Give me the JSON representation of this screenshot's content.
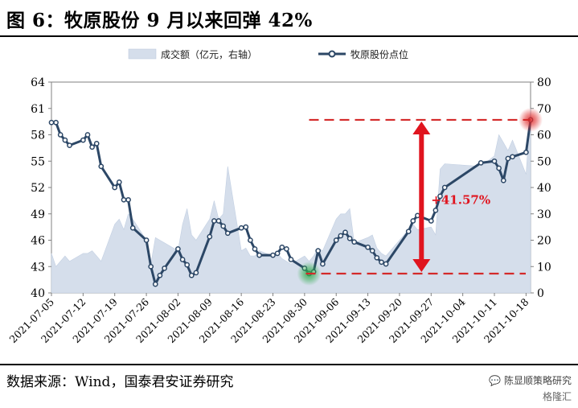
{
  "header": {
    "title": "图 6：牧原股份 9 月以来回弹 42%"
  },
  "footer": {
    "source": "数据来源：Wind，国泰君安证券研究",
    "watermark_line1": "陈显顺策略研究",
    "watermark_line2": "格隆汇"
  },
  "colors": {
    "line": "#2c4766",
    "area": "#d5deeb",
    "arrow": "#e0141e",
    "dash": "#d42a2a",
    "highlight_green": "#2eab4b",
    "highlight_red": "#e02b2b"
  },
  "chart_data": {
    "type": "line",
    "legend": [
      "成交额（亿元，右轴）",
      "牧原股份点位"
    ],
    "left_axis": {
      "min": 40,
      "max": 64,
      "ticks": [
        "40",
        "43",
        "46",
        "49",
        "52",
        "55",
        "58",
        "61",
        "64"
      ]
    },
    "right_axis": {
      "min": 0,
      "max": 80,
      "ticks": [
        "0",
        "10",
        "20",
        "30",
        "40",
        "50",
        "60",
        "70",
        "80"
      ]
    },
    "x_ticks": [
      "2021-07-05",
      "2021-07-12",
      "2021-07-19",
      "2021-07-26",
      "2021-08-02",
      "2021-08-09",
      "2021-08-16",
      "2021-08-23",
      "2021-08-30",
      "2021-09-06",
      "2021-09-13",
      "2021-09-20",
      "2021-09-27",
      "2021-10-04",
      "2021-10-11",
      "2021-10-18"
    ],
    "x": [
      "2021-07-05",
      "2021-07-06",
      "2021-07-07",
      "2021-07-08",
      "2021-07-09",
      "2021-07-12",
      "2021-07-13",
      "2021-07-14",
      "2021-07-15",
      "2021-07-16",
      "2021-07-19",
      "2021-07-20",
      "2021-07-21",
      "2021-07-22",
      "2021-07-23",
      "2021-07-26",
      "2021-07-27",
      "2021-07-28",
      "2021-07-29",
      "2021-07-30",
      "2021-08-02",
      "2021-08-03",
      "2021-08-04",
      "2021-08-05",
      "2021-08-06",
      "2021-08-09",
      "2021-08-10",
      "2021-08-11",
      "2021-08-12",
      "2021-08-13",
      "2021-08-16",
      "2021-08-17",
      "2021-08-18",
      "2021-08-19",
      "2021-08-20",
      "2021-08-23",
      "2021-08-24",
      "2021-08-25",
      "2021-08-26",
      "2021-08-27",
      "2021-08-30",
      "2021-08-31",
      "2021-09-01",
      "2021-09-02",
      "2021-09-03",
      "2021-09-06",
      "2021-09-07",
      "2021-09-08",
      "2021-09-09",
      "2021-09-10",
      "2021-09-13",
      "2021-09-14",
      "2021-09-15",
      "2021-09-16",
      "2021-09-17",
      "2021-09-22",
      "2021-09-23",
      "2021-09-24",
      "2021-09-27",
      "2021-09-28",
      "2021-09-29",
      "2021-09-30",
      "2021-10-08",
      "2021-10-11",
      "2021-10-12",
      "2021-10-13",
      "2021-10-14",
      "2021-10-15",
      "2021-10-18",
      "2021-10-19"
    ],
    "series": [
      {
        "name": "牧原股份点位",
        "axis": "left",
        "values": [
          59.4,
          59.4,
          58.0,
          57.4,
          56.8,
          57.4,
          58.0,
          56.6,
          57.0,
          54.4,
          52.0,
          52.6,
          50.6,
          50.6,
          47.4,
          46.0,
          43.0,
          41.0,
          42.0,
          42.8,
          45.0,
          43.8,
          43.2,
          42.0,
          42.3,
          46.4,
          48.2,
          48.2,
          47.6,
          46.8,
          47.4,
          47.5,
          46.0,
          45.0,
          44.3,
          44.3,
          44.5,
          45.2,
          45.0,
          43.8,
          42.8,
          42.2,
          42.4,
          44.8,
          43.3,
          46.0,
          46.5,
          46.9,
          46.2,
          45.8,
          45.2,
          44.8,
          44.0,
          43.5,
          43.3,
          47.0,
          48.2,
          48.8,
          48.2,
          49.4,
          51.0,
          52.0,
          54.8,
          55.0,
          54.2,
          52.8,
          55.3,
          55.5,
          56.0,
          59.7
        ]
      },
      {
        "name": "成交额（亿元，右轴）",
        "axis": "right",
        "values": [
          15,
          10,
          12,
          14,
          12,
          15,
          15,
          16,
          14,
          12,
          26,
          28,
          24,
          30,
          28,
          20,
          11,
          21,
          20,
          19,
          16,
          26,
          32,
          22,
          20,
          28,
          35,
          28,
          30,
          48,
          16,
          17,
          14,
          14,
          16,
          14,
          15,
          13,
          12,
          11,
          14,
          12,
          14,
          17,
          16,
          28,
          30,
          30,
          32,
          19,
          21,
          22,
          17,
          15,
          14,
          24,
          26,
          24,
          25,
          22,
          47,
          49,
          48,
          52,
          60,
          57,
          54,
          58,
          45,
          70
        ]
      }
    ],
    "annotation": {
      "label": "+41.57%",
      "low": 42.2,
      "high": 59.7,
      "low_date": "2021-08-31",
      "high_date": "2021-10-19"
    }
  }
}
